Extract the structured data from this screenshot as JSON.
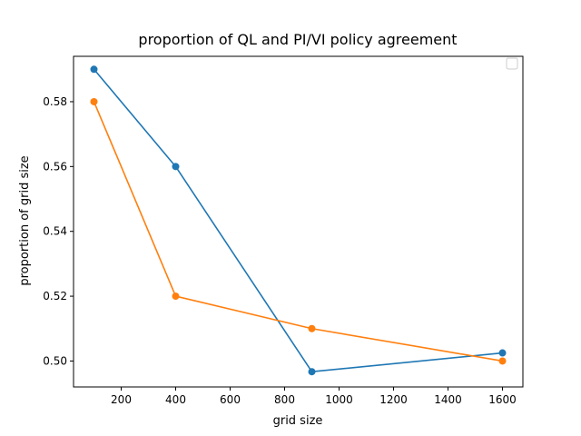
{
  "chart_data": {
    "type": "line",
    "title": "proportion of QL and PI/VI policy agreement",
    "xlabel": "grid size",
    "ylabel": "proportion of grid size",
    "xlim": [
      25,
      1675
    ],
    "ylim": [
      0.492,
      0.594
    ],
    "xticks": [
      200,
      400,
      600,
      800,
      1000,
      1200,
      1400,
      1600
    ],
    "xtick_labels": [
      "200",
      "400",
      "600",
      "800",
      "1000",
      "1200",
      "1400",
      "1600"
    ],
    "yticks": [
      0.5,
      0.52,
      0.54,
      0.56,
      0.58
    ],
    "ytick_labels": [
      "0.50",
      "0.52",
      "0.54",
      "0.56",
      "0.58"
    ],
    "legend": {
      "placement": "upper-right",
      "entries": []
    },
    "grid": false,
    "series": [
      {
        "name": "series-1",
        "color": "#1f77b4",
        "x": [
          100,
          400,
          900,
          1600
        ],
        "y": [
          0.59,
          0.56,
          0.4967,
          0.5025
        ]
      },
      {
        "name": "series-2",
        "color": "#ff7f0e",
        "x": [
          100,
          400,
          900,
          1600
        ],
        "y": [
          0.58,
          0.52,
          0.51,
          0.5
        ]
      }
    ]
  }
}
